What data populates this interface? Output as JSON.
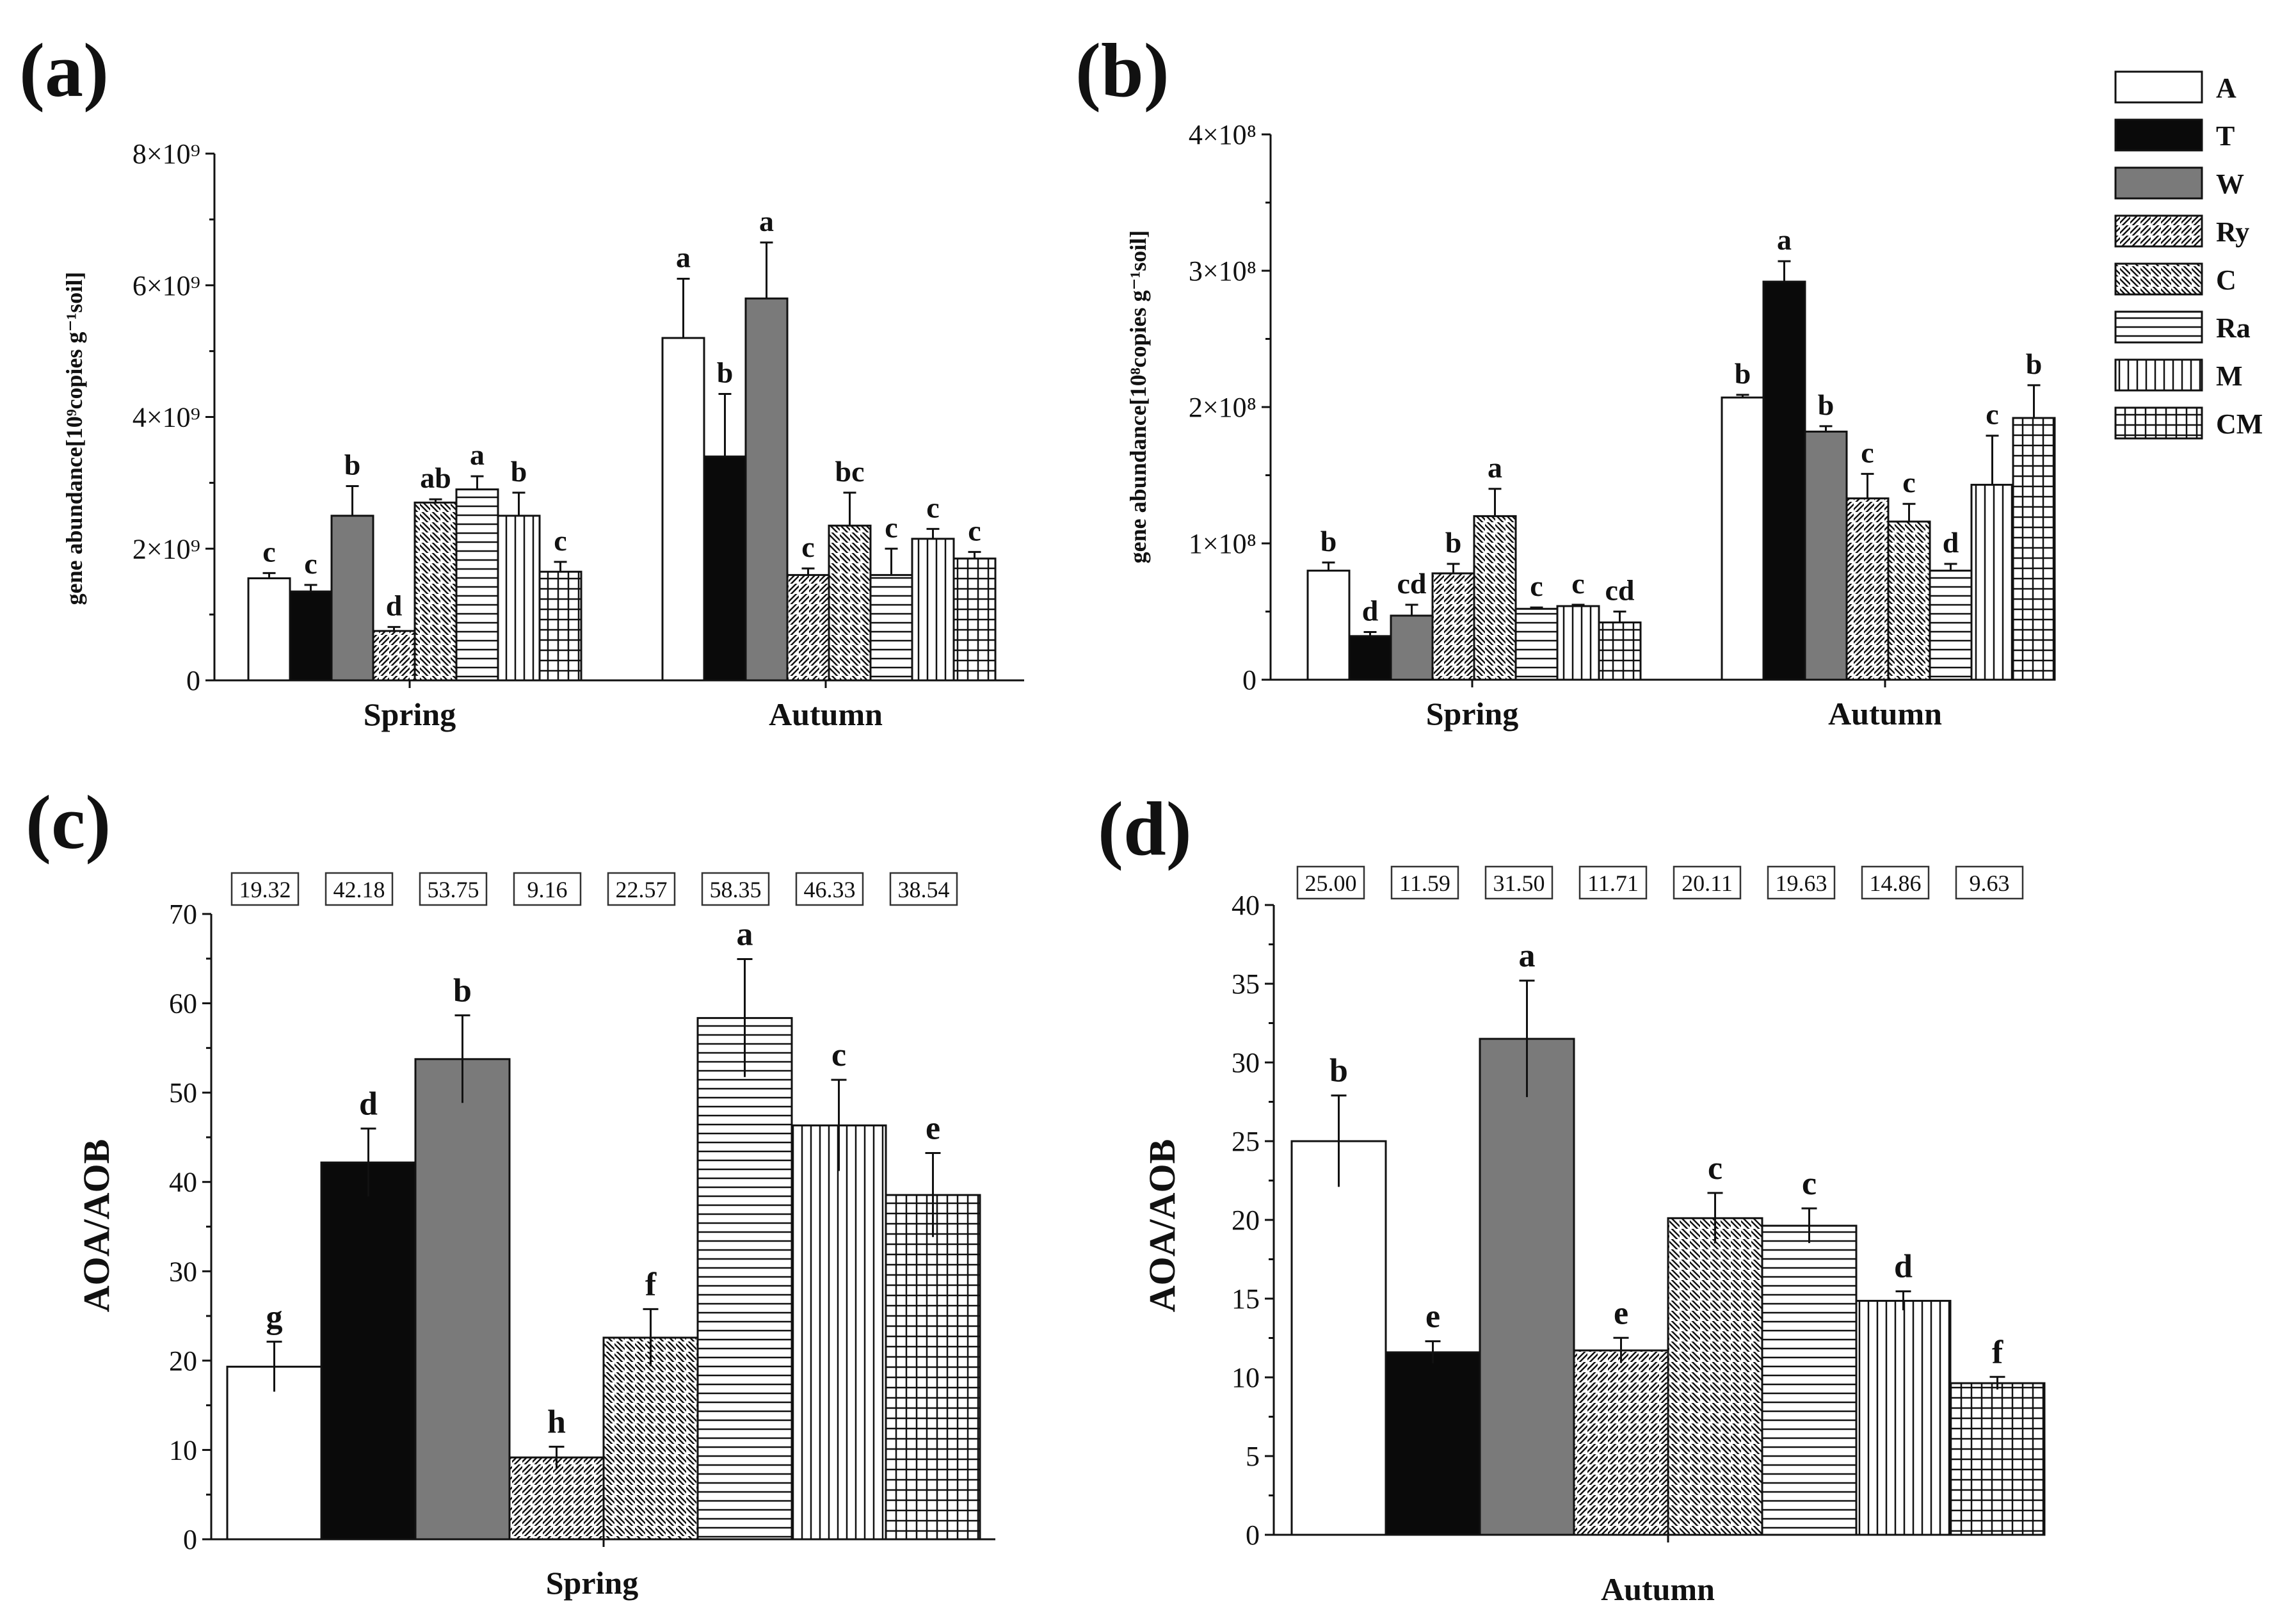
{
  "legend": {
    "items": [
      {
        "label": "A",
        "pattern": "white"
      },
      {
        "label": "T",
        "pattern": "black"
      },
      {
        "label": "W",
        "pattern": "gray"
      },
      {
        "label": "Ry",
        "pattern": "diag-right"
      },
      {
        "label": "C",
        "pattern": "diag-left"
      },
      {
        "label": "Ra",
        "pattern": "horizontal"
      },
      {
        "label": "M",
        "pattern": "vertical"
      },
      {
        "label": "CM",
        "pattern": "grid"
      }
    ]
  },
  "colors": {
    "black": "#0a0a0a",
    "gray": "#7a7a7a",
    "white": "#ffffff",
    "line": "#111111"
  },
  "chart_data": [
    {
      "panel": "(a)",
      "type": "bar",
      "ylabel": "gene abundance[10⁹copies g⁻¹soil]",
      "ylim": [
        0,
        8
      ],
      "yticks": [
        0,
        2,
        4,
        6,
        8
      ],
      "ytick_labels": [
        "0",
        "2×10⁹",
        "4×10⁹",
        "6×10⁹",
        "8×10⁹"
      ],
      "categories": [
        "Spring",
        "Autumn"
      ],
      "series": [
        {
          "name": "A",
          "values": [
            1.55,
            5.2
          ],
          "errors": [
            0.08,
            0.9
          ],
          "letters": [
            "c",
            "a"
          ]
        },
        {
          "name": "T",
          "values": [
            1.35,
            3.4
          ],
          "errors": [
            0.1,
            0.95
          ],
          "letters": [
            "c",
            "b"
          ]
        },
        {
          "name": "W",
          "values": [
            2.5,
            5.8
          ],
          "errors": [
            0.45,
            0.85
          ],
          "letters": [
            "b",
            "a"
          ]
        },
        {
          "name": "Ry",
          "values": [
            0.75,
            1.6
          ],
          "errors": [
            0.06,
            0.1
          ],
          "letters": [
            "d",
            "c"
          ]
        },
        {
          "name": "C",
          "values": [
            2.7,
            2.35
          ],
          "errors": [
            0.05,
            0.5
          ],
          "letters": [
            "ab",
            "bc"
          ]
        },
        {
          "name": "Ra",
          "values": [
            2.9,
            1.6
          ],
          "errors": [
            0.2,
            0.4
          ],
          "letters": [
            "a",
            "c"
          ]
        },
        {
          "name": "M",
          "values": [
            2.5,
            2.15
          ],
          "errors": [
            0.35,
            0.15
          ],
          "letters": [
            "b",
            "c"
          ]
        },
        {
          "name": "CM",
          "values": [
            1.65,
            1.85
          ],
          "errors": [
            0.15,
            0.1
          ],
          "letters": [
            "c",
            "c"
          ]
        }
      ]
    },
    {
      "panel": "(b)",
      "type": "bar",
      "ylabel": "gene abundance[10⁸copies g⁻¹soil]",
      "ylim": [
        0,
        4
      ],
      "yticks": [
        0,
        1,
        2,
        3,
        4
      ],
      "ytick_labels": [
        "0",
        "1×10⁸",
        "2×10⁸",
        "3×10⁸",
        "4×10⁸"
      ],
      "categories": [
        "Spring",
        "Autumn"
      ],
      "series": [
        {
          "name": "A",
          "values": [
            0.8,
            2.07
          ],
          "errors": [
            0.06,
            0.02
          ],
          "letters": [
            "b",
            "b"
          ]
        },
        {
          "name": "T",
          "values": [
            0.32,
            2.92
          ],
          "errors": [
            0.03,
            0.15
          ],
          "letters": [
            "d",
            "a"
          ]
        },
        {
          "name": "W",
          "values": [
            0.47,
            1.82
          ],
          "errors": [
            0.08,
            0.04
          ],
          "letters": [
            "cd",
            "b"
          ]
        },
        {
          "name": "Ry",
          "values": [
            0.78,
            1.33
          ],
          "errors": [
            0.07,
            0.18
          ],
          "letters": [
            "b",
            "c"
          ]
        },
        {
          "name": "C",
          "values": [
            1.2,
            1.16
          ],
          "errors": [
            0.2,
            0.13
          ],
          "letters": [
            "a",
            "c"
          ]
        },
        {
          "name": "Ra",
          "values": [
            0.52,
            0.8
          ],
          "errors": [
            0.01,
            0.05
          ],
          "letters": [
            "c",
            "d"
          ]
        },
        {
          "name": "M",
          "values": [
            0.54,
            1.43
          ],
          "errors": [
            0.01,
            0.36
          ],
          "letters": [
            "c",
            "c"
          ]
        },
        {
          "name": "CM",
          "values": [
            0.42,
            1.92
          ],
          "errors": [
            0.08,
            0.24
          ],
          "letters": [
            "cd",
            "b"
          ]
        }
      ]
    },
    {
      "panel": "(c)",
      "type": "bar",
      "ylabel": "AOA/AOB",
      "xlabel": "Spring",
      "ylim": [
        0,
        70
      ],
      "yticks": [
        0,
        10,
        20,
        30,
        40,
        50,
        60,
        70
      ],
      "series": [
        {
          "name": "A",
          "value": 19.32,
          "error": 2.8,
          "letter": "g",
          "box": "19.32"
        },
        {
          "name": "T",
          "value": 42.18,
          "error": 3.8,
          "letter": "d",
          "box": "42.18"
        },
        {
          "name": "W",
          "value": 53.75,
          "error": 4.9,
          "letter": "b",
          "box": "53.75"
        },
        {
          "name": "Ry",
          "value": 9.16,
          "error": 1.2,
          "letter": "h",
          "box": "9.16"
        },
        {
          "name": "C",
          "value": 22.57,
          "error": 3.2,
          "letter": "f",
          "box": "22.57"
        },
        {
          "name": "Ra",
          "value": 58.35,
          "error": 6.6,
          "letter": "a",
          "box": "58.35"
        },
        {
          "name": "M",
          "value": 46.33,
          "error": 5.1,
          "letter": "c",
          "box": "46.33"
        },
        {
          "name": "CM",
          "value": 38.54,
          "error": 4.7,
          "letter": "e",
          "box": "38.54"
        }
      ]
    },
    {
      "panel": "(d)",
      "type": "bar",
      "ylabel": "AOA/AOB",
      "xlabel": "Autumn",
      "ylim": [
        0,
        40
      ],
      "yticks": [
        0,
        5,
        10,
        15,
        20,
        25,
        30,
        35,
        40
      ],
      "series": [
        {
          "name": "A",
          "value": 25.0,
          "error": 2.9,
          "letter": "b",
          "box": "25.00"
        },
        {
          "name": "T",
          "value": 11.59,
          "error": 0.7,
          "letter": "e",
          "box": "11.59"
        },
        {
          "name": "W",
          "value": 31.5,
          "error": 3.7,
          "letter": "a",
          "box": "31.50"
        },
        {
          "name": "Ry",
          "value": 11.71,
          "error": 0.8,
          "letter": "e",
          "box": "11.71"
        },
        {
          "name": "C",
          "value": 20.11,
          "error": 1.6,
          "letter": "c",
          "box": "20.11"
        },
        {
          "name": "Ra",
          "value": 19.63,
          "error": 1.1,
          "letter": "c",
          "box": "19.63"
        },
        {
          "name": "M",
          "value": 14.86,
          "error": 0.6,
          "letter": "d",
          "box": "14.86"
        },
        {
          "name": "CM",
          "value": 9.63,
          "error": 0.4,
          "letter": "f",
          "box": "9.63"
        }
      ]
    }
  ]
}
